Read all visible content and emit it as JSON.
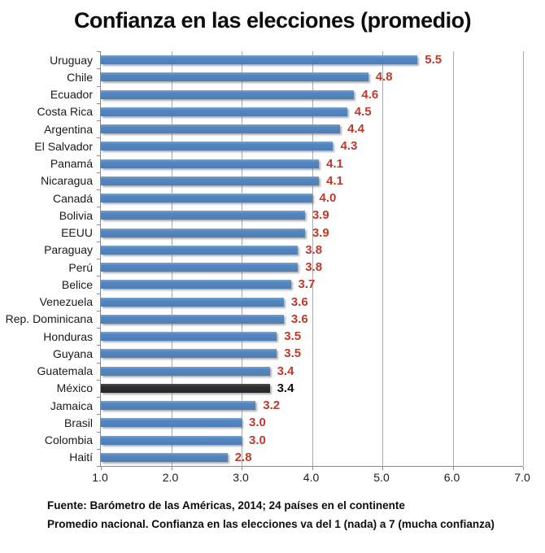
{
  "title": "Confianza en las elecciones (promedio)",
  "chart_data": {
    "type": "bar",
    "orientation": "horizontal",
    "title": "Confianza en las elecciones (promedio)",
    "categories": [
      "Uruguay",
      "Chile",
      "Ecuador",
      "Costa Rica",
      "Argentina",
      "El Salvador",
      "Panamá",
      "Nicaragua",
      "Canadá",
      "Bolivia",
      "EEUU",
      "Paraguay",
      "Perú",
      "Belice",
      "Venezuela",
      "Rep. Dominicana",
      "Honduras",
      "Guyana",
      "Guatemala",
      "México",
      "Jamaica",
      "Brasil",
      "Colombia",
      "Haití"
    ],
    "values": [
      5.5,
      4.8,
      4.6,
      4.5,
      4.4,
      4.3,
      4.1,
      4.1,
      4.0,
      3.9,
      3.9,
      3.8,
      3.8,
      3.7,
      3.6,
      3.6,
      3.5,
      3.5,
      3.4,
      3.4,
      3.2,
      3.0,
      3.0,
      2.8
    ],
    "value_labels": [
      "5.5",
      "4.8",
      "4.6",
      "4.5",
      "4.4",
      "4.3",
      "4.1",
      "4.1",
      "4.0",
      "3.9",
      "3.9",
      "3.8",
      "3.8",
      "3.7",
      "3.6",
      "3.6",
      "3.5",
      "3.5",
      "3.4",
      "3.4",
      "3.2",
      "3.0",
      "3.0",
      "2.8"
    ],
    "highlight_index": 19,
    "highlight_category": "México",
    "xlim": [
      1.0,
      7.0
    ],
    "xticks": [
      "1.0",
      "2.0",
      "3.0",
      "4.0",
      "5.0",
      "6.0",
      "7.0"
    ],
    "grid": true,
    "legend": "none",
    "colors": {
      "bar": "#5486C0",
      "highlight_bar": "#2E2E2E",
      "value_label": "#C0392B",
      "highlight_value_label": "#111111",
      "gridline": "#A9A9A9",
      "axis": "#8A8A8A"
    }
  },
  "footer": {
    "line1": "Fuente: Barómetro de las Américas, 2014; 24 países en el continente",
    "line2": "Promedio nacional. Confianza en las elecciones va del 1 (nada) a 7 (mucha confianza)"
  }
}
